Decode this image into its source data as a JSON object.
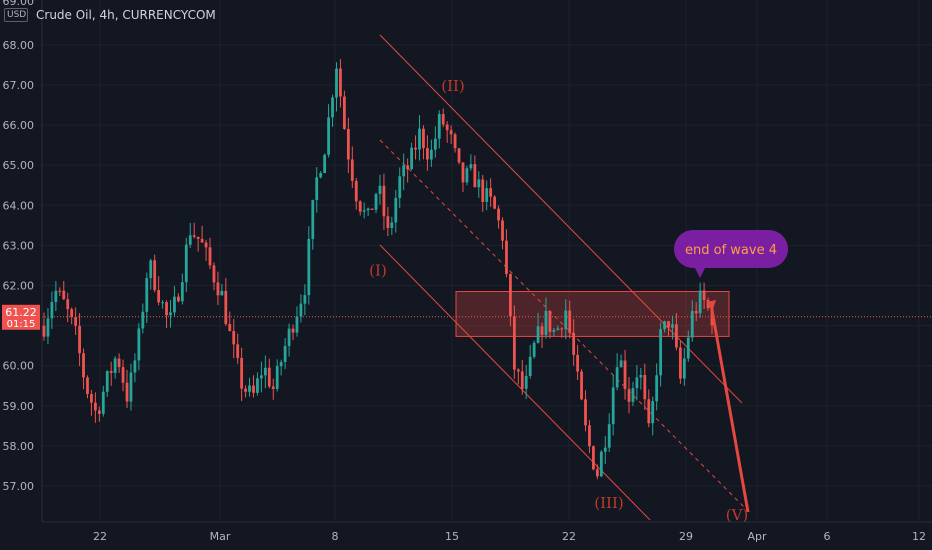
{
  "header": {
    "currency_badge": "USD",
    "symbol_title": "Crude Oil, 4h, CURRENCYCOM"
  },
  "price_label": {
    "value": "61.22",
    "countdown": "01:15"
  },
  "colors": {
    "background": "#131722",
    "up": "#26a69a",
    "down": "#ef5350",
    "channel": "#e5483f",
    "wave_label": "#c0392b",
    "callout": "#7b1fa2",
    "callout_text": "#ff9f43",
    "axis_text": "#b2b5be"
  },
  "chart_data": {
    "type": "candlestick",
    "interval": "4h",
    "x_tick_labels": [
      "22",
      "Mar",
      "8",
      "15",
      "22",
      "29",
      "Apr",
      "6",
      "12"
    ],
    "y_range": [
      56.3,
      69.0
    ],
    "y_tick_values": [
      57,
      58,
      59,
      60,
      61,
      62,
      63,
      64,
      65,
      66,
      67,
      68
    ],
    "y_tick_labels": [
      "57.00",
      "58.00",
      "59.00",
      "60.00",
      "61.00",
      "62.00",
      "63.00",
      "64.00",
      "65.00",
      "66.00",
      "67.00",
      "68.00"
    ],
    "y_tick_top_partial": "69.00",
    "current_price": 61.22,
    "wave_labels": [
      {
        "text": "(I)",
        "price": 62.4
      },
      {
        "text": "(II)",
        "price": 67.0
      },
      {
        "text": "(III)",
        "price": 56.6
      },
      {
        "text": "(V)",
        "price": 56.3
      }
    ],
    "callout": {
      "text": "end of wave 4",
      "price": 62.2
    },
    "resistance_zone": {
      "price_top": 61.85,
      "price_bottom": 60.73
    },
    "price_path": [
      61.0,
      61.9,
      61.5,
      60.8,
      59.5,
      58.8,
      59.6,
      60.3,
      59.2,
      60.5,
      62.6,
      61.8,
      61.0,
      62.0,
      63.4,
      63.1,
      62.4,
      61.8,
      60.5,
      59.5,
      59.2,
      60.0,
      59.4,
      60.4,
      61.2,
      62.0,
      64.5,
      65.6,
      67.6,
      65.5,
      64.2,
      63.6,
      64.5,
      63.2,
      64.6,
      65.0,
      65.8,
      65.2,
      66.2,
      65.6,
      64.6,
      64.8,
      64.3,
      64.0,
      63.2,
      60.0,
      59.3,
      60.5,
      61.2,
      60.8,
      61.4,
      59.8,
      58.2,
      57.3,
      58.5,
      60.4,
      59.2,
      60.0,
      58.2,
      60.7,
      61.2,
      59.6,
      61.2,
      61.7,
      61.22
    ]
  }
}
